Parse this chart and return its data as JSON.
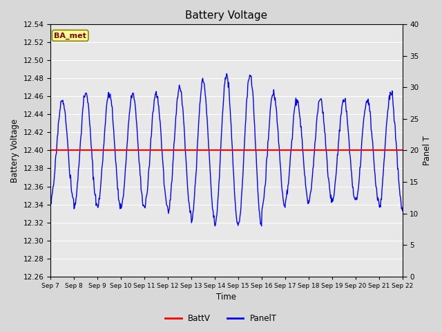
{
  "title": "Battery Voltage",
  "xlabel": "Time",
  "ylabel_left": "Battery Voltage",
  "ylabel_right": "Panel T",
  "ylim_left": [
    12.26,
    12.54
  ],
  "ylim_right": [
    0,
    40
  ],
  "yticks_left": [
    12.26,
    12.28,
    12.3,
    12.32,
    12.34,
    12.36,
    12.38,
    12.4,
    12.42,
    12.44,
    12.46,
    12.48,
    12.5,
    12.52,
    12.54
  ],
  "yticks_right": [
    0,
    5,
    10,
    15,
    20,
    25,
    30,
    35,
    40
  ],
  "x_tick_labels": [
    "Sep 7",
    "Sep 8",
    "Sep 9",
    "Sep 10",
    "Sep 11",
    "Sep 12",
    "Sep 13",
    "Sep 14",
    "Sep 15",
    "Sep 16",
    "Sep 17",
    "Sep 18",
    "Sep 19",
    "Sep 20",
    "Sep 21",
    "Sep 22"
  ],
  "battv_value": 12.4,
  "battv_color": "#ff0000",
  "panelT_color": "#0000ff",
  "fig_bg_color": "#d8d8d8",
  "plot_bg_color": "#e8e8e8",
  "grid_color": "#ffffff",
  "annotation_text": "BA_met",
  "annotation_bg": "#ffff99",
  "annotation_border": "#888800",
  "annotation_text_color": "#8b0000",
  "legend_battv": "BattV",
  "legend_panelT": "PanelT",
  "title_fontsize": 11
}
